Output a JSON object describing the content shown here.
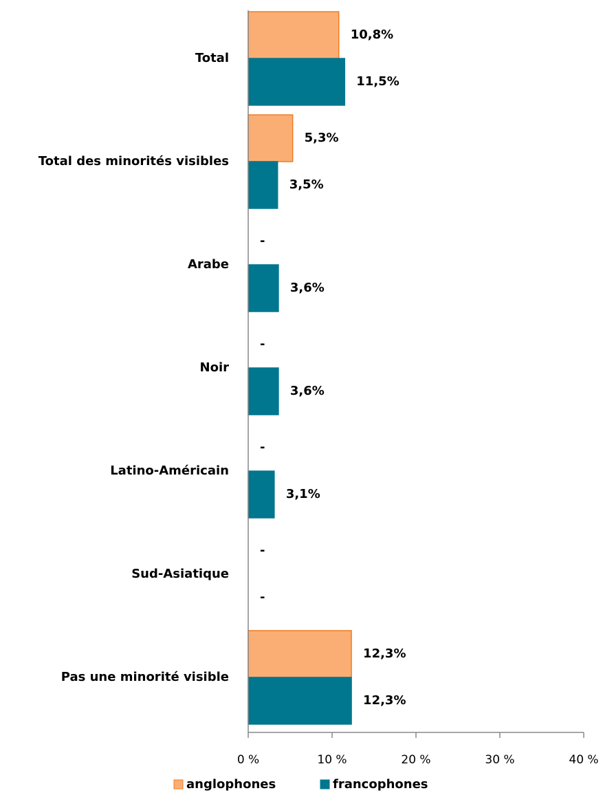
{
  "chart_data": {
    "type": "hbar",
    "categories": [
      "Total",
      "Total des minorités visibles",
      "Arabe",
      "Noir",
      "Latino-Américain",
      "Sud-Asiatique",
      "Pas une minorité visible"
    ],
    "series": [
      {
        "name": "anglophones",
        "color": "#fbae74",
        "edge": "#f07c22",
        "values": [
          10.8,
          5.3,
          null,
          null,
          null,
          null,
          12.3
        ],
        "value_labels": [
          "10,8%",
          "5,3%",
          "-",
          "-",
          "-",
          "-",
          "12,3%"
        ]
      },
      {
        "name": "francophones",
        "color": "#00778f",
        "edge": "#00778f",
        "values": [
          11.5,
          3.5,
          3.6,
          3.6,
          3.1,
          null,
          12.3
        ],
        "value_labels": [
          "11,5%",
          "3,5%",
          "3,6%",
          "3,6%",
          "3,1%",
          "-",
          "12,3%"
        ]
      }
    ],
    "xlim": [
      0,
      40
    ],
    "xticks": [
      {
        "value": 0,
        "label": "0 %"
      },
      {
        "value": 10,
        "label": "10 %"
      },
      {
        "value": 20,
        "label": "20 %"
      },
      {
        "value": 30,
        "label": "30 %"
      },
      {
        "value": 40,
        "label": "40 %"
      }
    ],
    "legend": "bottom"
  }
}
